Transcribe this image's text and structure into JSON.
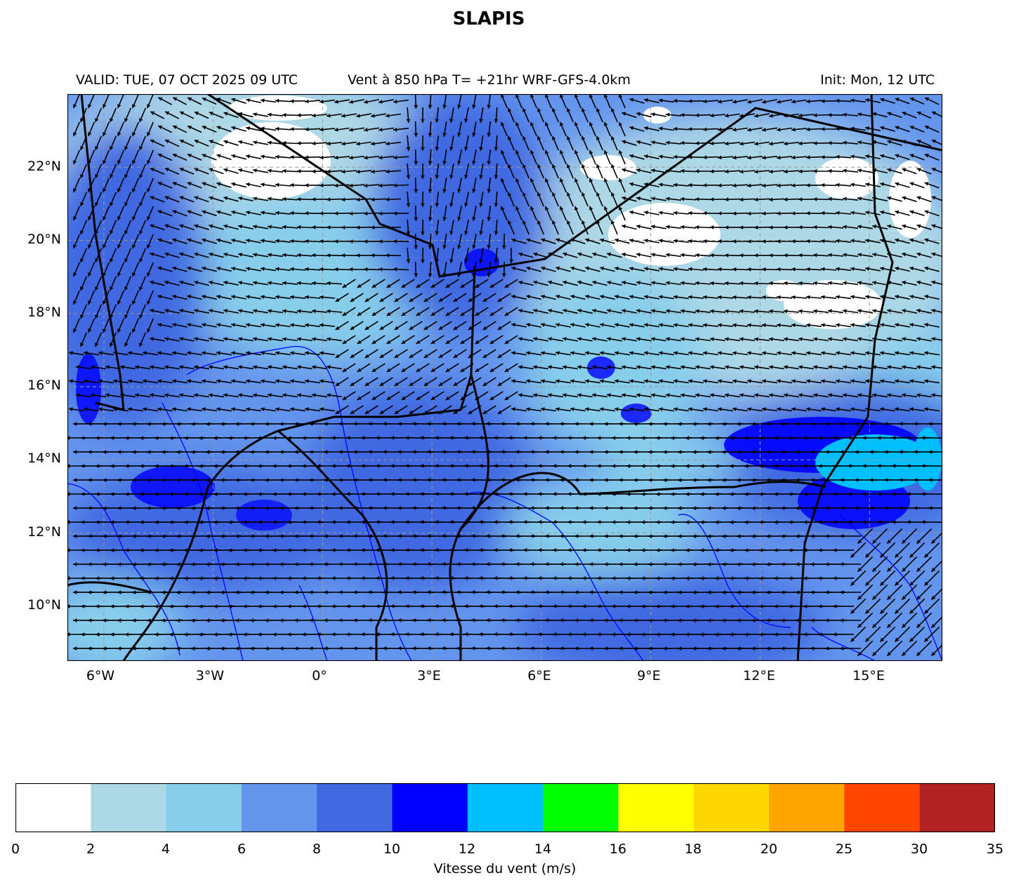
{
  "title": "SLAPIS",
  "header": {
    "valid": "VALID: TUE, 07 OCT 2025 09 UTC",
    "product": "Vent à 850 hPa T= +21hr  WRF-GFS-4.0km",
    "init": "Init: Mon, 12 UTC"
  },
  "map": {
    "type": "wind field (speed fill + direction arrows)",
    "lon_range": [
      -7,
      17
    ],
    "lat_range": [
      8.5,
      24
    ],
    "lat_ticks": [
      "22°N",
      "20°N",
      "18°N",
      "16°N",
      "14°N",
      "12°N",
      "10°N"
    ],
    "lat_tick_values": [
      22,
      20,
      18,
      16,
      14,
      12,
      10
    ],
    "lon_ticks": [
      "6°W",
      "3°W",
      "0°",
      "3°E",
      "6°E",
      "9°E",
      "12°E",
      "15°E"
    ],
    "lon_tick_values": [
      -6,
      -3,
      0,
      3,
      6,
      9,
      12,
      15
    ],
    "grid": "dashed gray",
    "border_color": "#000000",
    "river_color": "#0000ff"
  },
  "colorbar": {
    "label": "Vitesse du vent (m/s)",
    "ticks": [
      "0",
      "2",
      "4",
      "6",
      "8",
      "10",
      "12",
      "14",
      "16",
      "18",
      "20",
      "25",
      "30",
      "35"
    ],
    "colors": [
      "#ffffff",
      "#add8e6",
      "#87ceeb",
      "#6495ed",
      "#4169e1",
      "#0000ff",
      "#00bfff",
      "#00ff00",
      "#ffff00",
      "#ffd700",
      "#ffa500",
      "#ff4500",
      "#b22222"
    ]
  }
}
